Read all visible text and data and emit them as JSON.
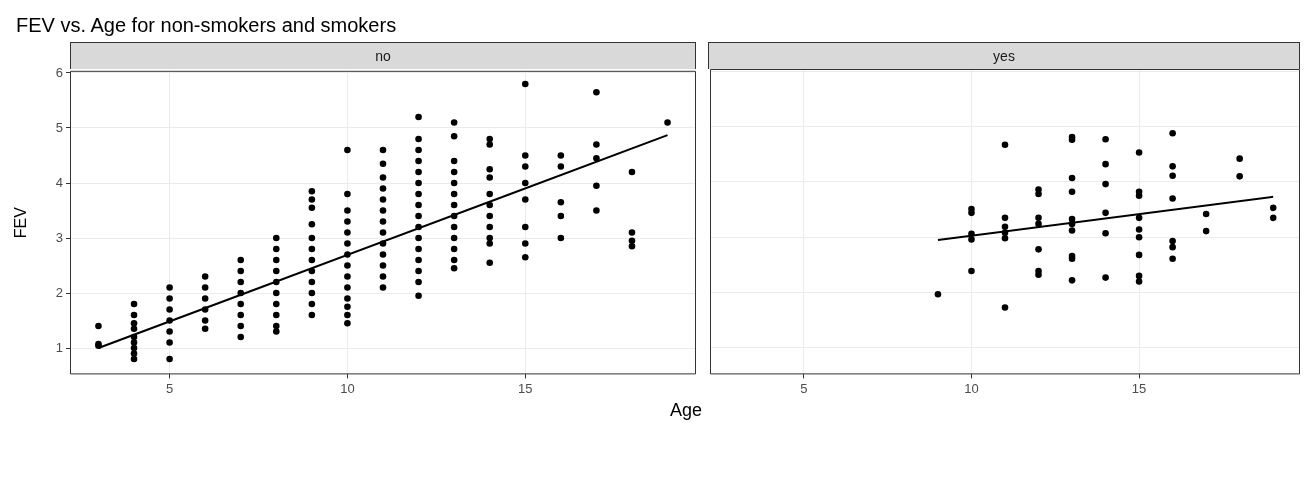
{
  "chart_data": [
    {
      "type": "scatter",
      "title": "FEV vs. Age for non-smokers and smokers",
      "subtitle": "no",
      "xlabel": "Age",
      "ylabel": "FEV",
      "xlim": [
        2.2,
        19.8
      ],
      "xticks": [
        5,
        10,
        15
      ],
      "ylim": [
        0.52,
        6.04
      ],
      "yticks": [
        1,
        2,
        3,
        4,
        5,
        6
      ],
      "grid": true,
      "marker": "circle",
      "series": [
        {
          "color": "#000000",
          "x": [
            3,
            3,
            3,
            4,
            4,
            4,
            4,
            4,
            4,
            4,
            4,
            4,
            5,
            5,
            5,
            5,
            5,
            5,
            5,
            6,
            6,
            6,
            6,
            6,
            6,
            7,
            7,
            7,
            7,
            7,
            7,
            7,
            7,
            8,
            8,
            8,
            8,
            8,
            8,
            8,
            8,
            8,
            8,
            9,
            9,
            9,
            9,
            9,
            9,
            9,
            9,
            9,
            9,
            9,
            9,
            10,
            10,
            10,
            10,
            10,
            10,
            10,
            10,
            10,
            10,
            10,
            10,
            10,
            10,
            11,
            11,
            11,
            11,
            11,
            11,
            11,
            11,
            11,
            11,
            11,
            11,
            11,
            12,
            12,
            12,
            12,
            12,
            12,
            12,
            12,
            12,
            12,
            12,
            12,
            12,
            12,
            12,
            12,
            13,
            13,
            13,
            13,
            13,
            13,
            13,
            13,
            13,
            13,
            13,
            13,
            13,
            14,
            14,
            14,
            14,
            14,
            14,
            14,
            14,
            14,
            14,
            14,
            15,
            15,
            15,
            15,
            15,
            15,
            15,
            15,
            16,
            16,
            16,
            16,
            16,
            17,
            17,
            17,
            17,
            17,
            18,
            18,
            18,
            18,
            19
          ],
          "values": [
            1.4,
            1.07,
            1.04,
            1.8,
            1.6,
            1.45,
            1.35,
            1.2,
            1.1,
            1.0,
            0.9,
            0.8,
            2.1,
            1.9,
            1.7,
            1.5,
            1.3,
            1.1,
            0.8,
            2.3,
            2.1,
            1.9,
            1.7,
            1.5,
            1.35,
            2.6,
            2.4,
            2.2,
            2.0,
            1.8,
            1.6,
            1.4,
            1.2,
            3.0,
            2.8,
            2.6,
            2.4,
            2.2,
            2.0,
            1.8,
            1.6,
            1.4,
            1.3,
            3.85,
            3.7,
            3.55,
            3.25,
            3.0,
            2.8,
            2.6,
            2.4,
            2.2,
            2.0,
            1.8,
            1.6,
            4.6,
            3.8,
            3.5,
            3.3,
            3.1,
            2.9,
            2.7,
            2.5,
            2.3,
            2.1,
            1.9,
            1.75,
            1.6,
            1.45,
            4.6,
            4.35,
            4.1,
            3.9,
            3.7,
            3.5,
            3.3,
            3.1,
            2.9,
            2.7,
            2.5,
            2.3,
            2.1,
            5.2,
            4.8,
            4.6,
            4.4,
            4.2,
            4.0,
            3.8,
            3.6,
            3.4,
            3.2,
            3.0,
            2.8,
            2.6,
            2.4,
            2.2,
            1.95,
            5.1,
            4.85,
            4.4,
            4.2,
            4.0,
            3.8,
            3.6,
            3.4,
            3.2,
            3.0,
            2.8,
            2.6,
            2.45,
            4.8,
            4.7,
            4.25,
            4.1,
            3.8,
            3.6,
            3.4,
            3.2,
            3.0,
            2.9,
            2.55,
            5.8,
            4.5,
            4.3,
            4.0,
            3.7,
            3.2,
            2.9,
            2.65,
            4.5,
            4.3,
            3.65,
            3.4,
            3.0,
            5.65,
            4.7,
            4.45,
            3.95,
            3.5,
            4.2,
            3.1,
            2.95,
            2.85,
            5.1
          ]
        },
        {
          "type": "line",
          "marker": "none",
          "color": "#000000",
          "x": [
            3,
            19
          ],
          "values": [
            1.0,
            4.87
          ]
        }
      ]
    },
    {
      "type": "scatter",
      "subtitle": "yes",
      "xlim": [
        2.2,
        19.8
      ],
      "xticks": [
        5,
        10,
        15
      ],
      "ylim": [
        0.52,
        6.04
      ],
      "yticks": [
        1,
        2,
        3,
        4,
        5,
        6
      ],
      "tick_labels": "x",
      "grid": true,
      "marker": "circle",
      "series": [
        {
          "color": "#000000",
          "x": [
            9,
            10,
            10,
            10,
            10,
            10,
            11,
            11,
            11,
            11,
            11,
            11,
            12,
            12,
            12,
            12,
            12,
            12,
            12,
            13,
            13,
            13,
            13,
            13,
            13,
            13,
            13,
            13,
            13,
            14,
            14,
            14,
            14,
            14,
            14,
            15,
            15,
            15,
            15,
            15,
            15,
            15,
            15,
            15,
            16,
            16,
            16,
            16,
            16,
            16,
            16,
            17,
            17,
            18,
            18,
            19,
            19
          ],
          "values": [
            1.97,
            3.51,
            3.44,
            3.06,
            2.96,
            2.39,
            4.67,
            3.35,
            3.19,
            3.08,
            2.98,
            1.73,
            3.86,
            3.78,
            3.35,
            3.24,
            2.78,
            2.39,
            2.32,
            4.81,
            4.76,
            4.07,
            3.82,
            3.33,
            3.24,
            3.12,
            2.66,
            2.61,
            2.22,
            4.77,
            4.32,
            3.96,
            3.44,
            3.07,
            2.27,
            4.53,
            3.82,
            3.75,
            3.35,
            3.14,
            3.0,
            2.68,
            2.3,
            2.2,
            4.88,
            4.28,
            4.11,
            3.7,
            2.93,
            2.82,
            2.61,
            3.42,
            3.11,
            4.42,
            4.1,
            3.53,
            3.35
          ]
        },
        {
          "type": "line",
          "marker": "none",
          "color": "#000000",
          "x": [
            9,
            19
          ],
          "values": [
            2.95,
            3.73
          ]
        }
      ]
    }
  ]
}
